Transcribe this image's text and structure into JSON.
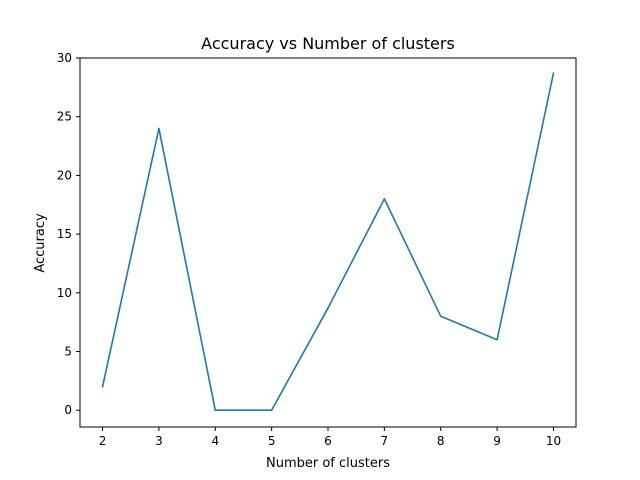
{
  "chart_data": {
    "type": "line",
    "title": "Accuracy vs Number of clusters",
    "xlabel": "Number of clusters",
    "ylabel": "Accuracy",
    "xlim": [
      1.6,
      10.4
    ],
    "ylim": [
      -1.43,
      30
    ],
    "xticks": [
      2,
      3,
      4,
      5,
      6,
      7,
      8,
      9,
      10
    ],
    "yticks": [
      0,
      5,
      10,
      15,
      20,
      25,
      30
    ],
    "grid": false,
    "legend": "none",
    "series": [
      {
        "color": "#1f77b4",
        "x": [
          2,
          3,
          4,
          5,
          6,
          7,
          8,
          9,
          10
        ],
        "y": [
          2,
          24,
          0,
          0,
          8.7,
          18,
          8,
          6,
          28.7
        ]
      }
    ]
  }
}
